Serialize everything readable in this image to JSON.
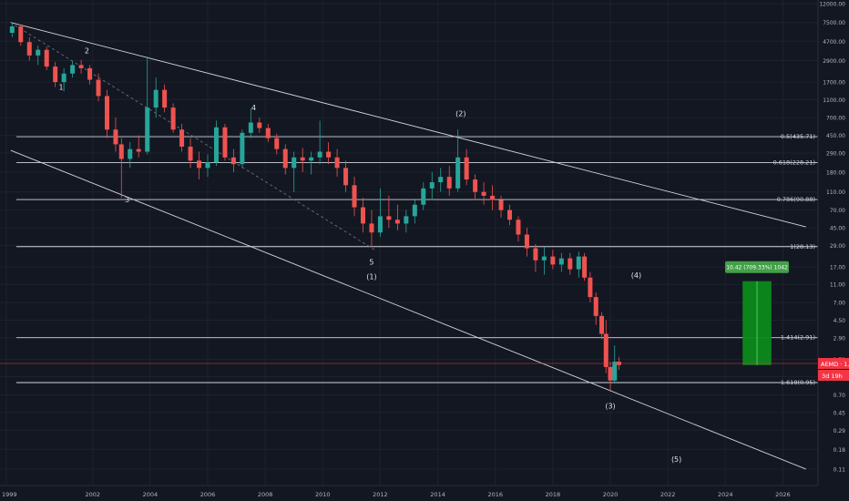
{
  "chart_data": {
    "type": "candlestick",
    "symbol": "AEMD",
    "last_price": "1.47",
    "price_label": "AEMD · 1.47",
    "countdown": "3d 19h",
    "y_scale": "log",
    "ylim": [
      0.08,
      12000
    ],
    "xlim": [
      1999.0,
      2027.0
    ],
    "grid": true,
    "price_ticks": [
      "12000.00",
      "7500.00",
      "4700.00",
      "2900.00",
      "1700.00",
      "1100.00",
      "700.00",
      "450.00",
      "290.00",
      "180.00",
      "110.00",
      "70.00",
      "45.00",
      "29.00",
      "17.00",
      "11.00",
      "7.00",
      "4.50",
      "2.90",
      "1.70",
      "1.10",
      "0.70",
      "0.45",
      "0.29",
      "0.18",
      "0.11"
    ],
    "time_ticks": [
      "1999",
      "2002",
      "2004",
      "2006",
      "2008",
      "2010",
      "2012",
      "2014",
      "2016",
      "2018",
      "2020",
      "2022",
      "2024",
      "2026"
    ],
    "fib_levels": [
      {
        "label": "0.5(435.71)",
        "price": 435.71
      },
      {
        "label": "0.618(228.21)",
        "price": 228.21
      },
      {
        "label": "0.786(90.88)",
        "price": 90.88
      },
      {
        "label": "1(28.13)",
        "price": 28.13
      },
      {
        "label": "1.414(2.91)",
        "price": 2.91
      },
      {
        "label": "1.618(0.95)",
        "price": 0.95
      }
    ],
    "wave_labels": [
      {
        "text": "1",
        "t": 2000.9,
        "p": 1400
      },
      {
        "text": "2",
        "t": 2001.8,
        "p": 3500
      },
      {
        "text": "3",
        "t": 2003.2,
        "p": 85
      },
      {
        "text": "4",
        "t": 2007.6,
        "p": 840
      },
      {
        "text": "5",
        "t": 2011.7,
        "p": 18
      },
      {
        "text": "(1)",
        "t": 2011.7,
        "p": 12.5
      },
      {
        "text": "(2)",
        "t": 2014.8,
        "p": 730
      },
      {
        "text": "(3)",
        "t": 2020.0,
        "p": 0.5
      },
      {
        "text": "(4)",
        "t": 2020.9,
        "p": 13
      },
      {
        "text": "(5)",
        "t": 2022.3,
        "p": 0.132
      }
    ],
    "channel_lines": [
      {
        "t1": 1999.15,
        "p1": 7500,
        "t2": 2026.8,
        "p2": 46
      },
      {
        "t1": 1999.15,
        "p1": 310,
        "t2": 2026.8,
        "p2": 0.11
      }
    ],
    "dashed_line": {
      "t1": 1999.3,
      "p1": 7000,
      "t2": 2011.8,
      "p2": 26
    },
    "projection": {
      "t1": 2024.6,
      "t2": 2025.6,
      "p_start": 1.47,
      "p_end": 11.89,
      "label": "10.42 (709.33%) 1042"
    },
    "candles": [
      [
        1999.2,
        5800,
        7500,
        5200,
        6800
      ],
      [
        1999.5,
        6800,
        7100,
        4200,
        4600
      ],
      [
        1999.8,
        4600,
        5200,
        2900,
        3300
      ],
      [
        2000.1,
        3300,
        4200,
        2600,
        3800
      ],
      [
        2000.4,
        3800,
        4100,
        2300,
        2500
      ],
      [
        2000.7,
        2500,
        2800,
        1500,
        1700
      ],
      [
        2001.0,
        1700,
        2400,
        1350,
        2100
      ],
      [
        2001.3,
        2100,
        2900,
        1900,
        2600
      ],
      [
        2001.6,
        2600,
        2950,
        2100,
        2400
      ],
      [
        2001.9,
        2400,
        2600,
        1600,
        1800
      ],
      [
        2002.2,
        1800,
        2100,
        1050,
        1200
      ],
      [
        2002.5,
        1200,
        1400,
        420,
        520
      ],
      [
        2002.8,
        520,
        700,
        300,
        360
      ],
      [
        2003.0,
        360,
        420,
        95,
        250
      ],
      [
        2003.3,
        250,
        380,
        200,
        320
      ],
      [
        2003.6,
        320,
        450,
        260,
        300
      ],
      [
        2003.9,
        300,
        3200,
        280,
        900
      ],
      [
        2004.2,
        900,
        1900,
        700,
        1400
      ],
      [
        2004.5,
        1400,
        1600,
        800,
        900
      ],
      [
        2004.8,
        900,
        1000,
        480,
        520
      ],
      [
        2005.1,
        520,
        600,
        300,
        340
      ],
      [
        2005.4,
        340,
        420,
        200,
        240
      ],
      [
        2005.7,
        240,
        300,
        150,
        200
      ],
      [
        2006.0,
        200,
        280,
        160,
        230
      ],
      [
        2006.3,
        230,
        650,
        210,
        550
      ],
      [
        2006.6,
        550,
        600,
        240,
        260
      ],
      [
        2006.9,
        260,
        320,
        180,
        220
      ],
      [
        2007.2,
        220,
        520,
        200,
        480
      ],
      [
        2007.5,
        480,
        880,
        420,
        620
      ],
      [
        2007.8,
        620,
        700,
        480,
        540
      ],
      [
        2008.1,
        540,
        600,
        380,
        420
      ],
      [
        2008.4,
        420,
        470,
        280,
        320
      ],
      [
        2008.7,
        320,
        360,
        170,
        200
      ],
      [
        2009.0,
        200,
        300,
        110,
        260
      ],
      [
        2009.3,
        260,
        330,
        180,
        240
      ],
      [
        2009.6,
        240,
        300,
        170,
        260
      ],
      [
        2009.9,
        260,
        650,
        220,
        300
      ],
      [
        2010.2,
        300,
        380,
        220,
        260
      ],
      [
        2010.5,
        260,
        320,
        160,
        200
      ],
      [
        2010.8,
        200,
        240,
        110,
        130
      ],
      [
        2011.1,
        130,
        160,
        60,
        75
      ],
      [
        2011.4,
        75,
        95,
        40,
        50
      ],
      [
        2011.7,
        50,
        70,
        28,
        40
      ],
      [
        2012.0,
        40,
        120,
        36,
        60
      ],
      [
        2012.3,
        60,
        100,
        45,
        55
      ],
      [
        2012.6,
        55,
        80,
        42,
        50
      ],
      [
        2012.9,
        50,
        70,
        40,
        60
      ],
      [
        2013.2,
        60,
        90,
        50,
        80
      ],
      [
        2013.5,
        80,
        140,
        70,
        120
      ],
      [
        2013.8,
        120,
        180,
        90,
        140
      ],
      [
        2014.1,
        140,
        200,
        110,
        160
      ],
      [
        2014.4,
        160,
        210,
        100,
        120
      ],
      [
        2014.7,
        120,
        520,
        110,
        260
      ],
      [
        2015.0,
        260,
        320,
        130,
        150
      ],
      [
        2015.3,
        150,
        170,
        90,
        110
      ],
      [
        2015.6,
        110,
        140,
        80,
        100
      ],
      [
        2015.9,
        100,
        130,
        70,
        90
      ],
      [
        2016.2,
        90,
        100,
        58,
        70
      ],
      [
        2016.5,
        70,
        80,
        48,
        55
      ],
      [
        2016.8,
        55,
        60,
        32,
        38
      ],
      [
        2017.1,
        38,
        45,
        22,
        27
      ],
      [
        2017.4,
        27,
        30,
        15,
        20
      ],
      [
        2017.7,
        20,
        28,
        14,
        22
      ],
      [
        2018.0,
        22,
        26,
        16,
        18
      ],
      [
        2018.3,
        18,
        24,
        15,
        21
      ],
      [
        2018.6,
        21,
        24,
        14,
        16
      ],
      [
        2018.9,
        16,
        25,
        13,
        22
      ],
      [
        2019.1,
        22,
        24,
        12,
        13
      ],
      [
        2019.3,
        13,
        15,
        7,
        8
      ],
      [
        2019.5,
        8,
        9,
        4,
        5
      ],
      [
        2019.7,
        5,
        5.5,
        2.8,
        3.2
      ],
      [
        2019.85,
        3.2,
        4.5,
        1.2,
        1.4
      ],
      [
        2020.0,
        1.4,
        1.6,
        0.78,
        1.0
      ],
      [
        2020.15,
        1.0,
        2.4,
        0.95,
        1.6
      ],
      [
        2020.3,
        1.6,
        1.8,
        1.3,
        1.47
      ]
    ]
  }
}
